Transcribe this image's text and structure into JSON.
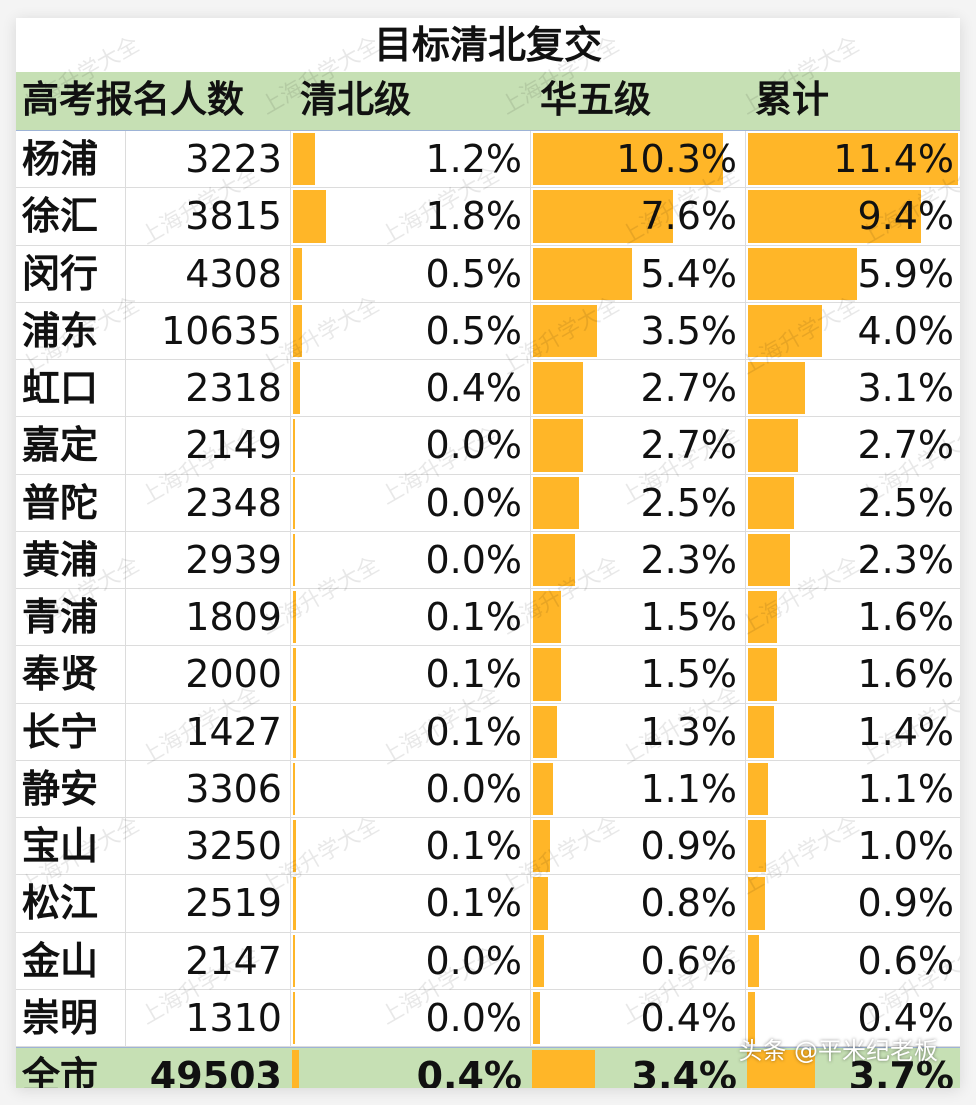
{
  "title": "目标清北复交",
  "headers": {
    "count": "高考报名人数",
    "qb": "清北级",
    "hw": "华五级",
    "total": "累计"
  },
  "rows": [
    {
      "district": "杨浦",
      "count": "3223",
      "qb": 1.2,
      "hw": 10.3,
      "total": 11.4
    },
    {
      "district": "徐汇",
      "count": "3815",
      "qb": 1.8,
      "hw": 7.6,
      "total": 9.4
    },
    {
      "district": "闵行",
      "count": "4308",
      "qb": 0.5,
      "hw": 5.4,
      "total": 5.9
    },
    {
      "district": "浦东",
      "count": "10635",
      "qb": 0.5,
      "hw": 3.5,
      "total": 4.0
    },
    {
      "district": "虹口",
      "count": "2318",
      "qb": 0.4,
      "hw": 2.7,
      "total": 3.1
    },
    {
      "district": "嘉定",
      "count": "2149",
      "qb": 0.0,
      "hw": 2.7,
      "total": 2.7
    },
    {
      "district": "普陀",
      "count": "2348",
      "qb": 0.0,
      "hw": 2.5,
      "total": 2.5
    },
    {
      "district": "黄浦",
      "count": "2939",
      "qb": 0.0,
      "hw": 2.3,
      "total": 2.3
    },
    {
      "district": "青浦",
      "count": "1809",
      "qb": 0.1,
      "hw": 1.5,
      "total": 1.6
    },
    {
      "district": "奉贤",
      "count": "2000",
      "qb": 0.1,
      "hw": 1.5,
      "total": 1.6
    },
    {
      "district": "长宁",
      "count": "1427",
      "qb": 0.1,
      "hw": 1.3,
      "total": 1.4
    },
    {
      "district": "静安",
      "count": "3306",
      "qb": 0.0,
      "hw": 1.1,
      "total": 1.1
    },
    {
      "district": "宝山",
      "count": "3250",
      "qb": 0.1,
      "hw": 0.9,
      "total": 1.0
    },
    {
      "district": "松江",
      "count": "2519",
      "qb": 0.1,
      "hw": 0.8,
      "total": 0.9
    },
    {
      "district": "金山",
      "count": "2147",
      "qb": 0.0,
      "hw": 0.6,
      "total": 0.6
    },
    {
      "district": "崇明",
      "count": "1310",
      "qb": 0.0,
      "hw": 0.4,
      "total": 0.4
    }
  ],
  "total_row": {
    "district": "全市",
    "count": "49503",
    "qb": 0.4,
    "hw": 3.4,
    "total": 3.7
  },
  "bar_color": "#ffb628",
  "header_color": "#c6e0b4",
  "watermark": "上海升学大全",
  "credit": "头条 @平米纪老板"
}
